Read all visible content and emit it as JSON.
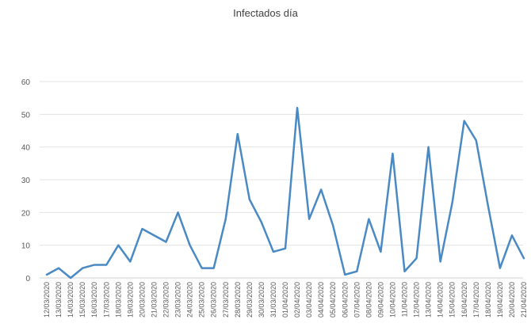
{
  "chart_data": {
    "type": "line",
    "title": "Infectados día",
    "xlabel": "",
    "ylabel": "",
    "ylim": [
      0,
      60
    ],
    "yticks": [
      0,
      10,
      20,
      30,
      40,
      50,
      60
    ],
    "grid": true,
    "legend": "none",
    "categories": [
      "12/03/2020",
      "13/03/2020",
      "14/03/2020",
      "15/03/2020",
      "16/03/2020",
      "17/03/2020",
      "18/03/2020",
      "19/03/2020",
      "20/03/2020",
      "21/03/2020",
      "22/03/2020",
      "23/03/2020",
      "24/03/2020",
      "25/03/2020",
      "26/03/2020",
      "27/03/2020",
      "28/03/2020",
      "29/03/2020",
      "30/03/2020",
      "31/03/2020",
      "01/04/2020",
      "02/04/2020",
      "03/04/2020",
      "04/04/2020",
      "05/04/2020",
      "06/04/2020",
      "07/04/2020",
      "08/04/2020",
      "09/04/2020",
      "10/04/2020",
      "11/04/2020",
      "12/04/2020",
      "13/04/2020",
      "14/04/2020",
      "15/04/2020",
      "16/04/2020",
      "17/04/2020",
      "18/04/2020",
      "19/04/2020",
      "20/04/2020",
      "21/04/2020"
    ],
    "series": [
      {
        "color": "#4a8ac4",
        "values": [
          1,
          3,
          0,
          3,
          4,
          4,
          10,
          5,
          15,
          13,
          11,
          20,
          10,
          3,
          3,
          18,
          44,
          24,
          17,
          8,
          9,
          52,
          18,
          27,
          16,
          1,
          2,
          18,
          8,
          38,
          2,
          6,
          40,
          5,
          23,
          48,
          42,
          22,
          3,
          13,
          6
        ]
      }
    ]
  }
}
